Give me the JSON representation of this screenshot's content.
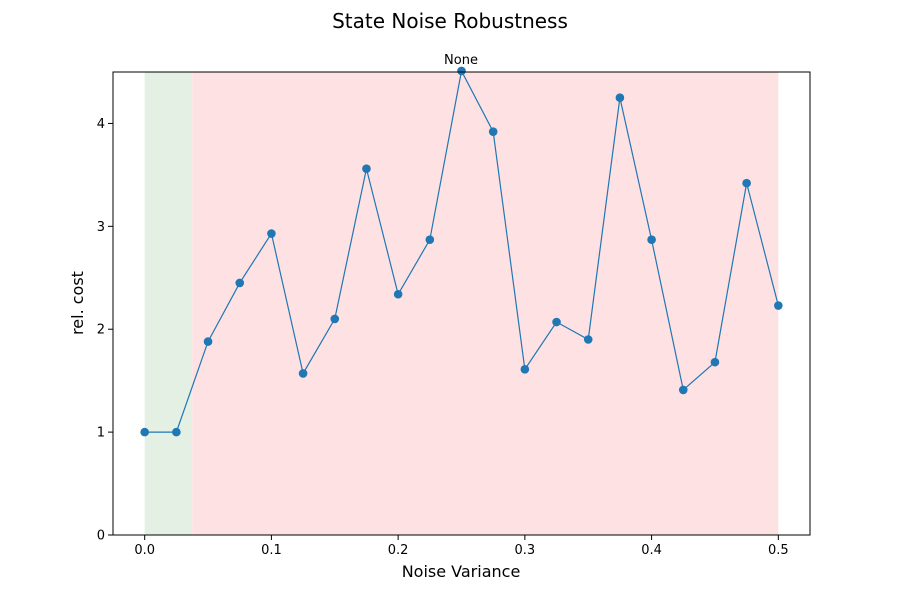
{
  "chart_data": {
    "type": "line",
    "title": "State Noise Robustness",
    "subtitle": "None",
    "xlabel": "Noise Variance",
    "ylabel": "rel. cost",
    "xlim": [
      -0.025,
      0.525
    ],
    "ylim": [
      0,
      4.5
    ],
    "xticks": [
      0.0,
      0.1,
      0.2,
      0.3,
      0.4,
      0.5
    ],
    "xtick_labels": [
      "0.0",
      "0.1",
      "0.2",
      "0.3",
      "0.4",
      "0.5"
    ],
    "yticks": [
      0,
      1,
      2,
      3,
      4
    ],
    "ytick_labels": [
      "0",
      "1",
      "2",
      "3",
      "4"
    ],
    "grid": false,
    "regions": [
      {
        "x_start": 0.0,
        "x_end": 0.0375,
        "color": "#e5f0e5"
      },
      {
        "x_start": 0.0375,
        "x_end": 0.5,
        "color": "#fee1e3"
      }
    ],
    "series": [
      {
        "color": "#1f77b4",
        "x": [
          0.0,
          0.025,
          0.05,
          0.075,
          0.1,
          0.125,
          0.15,
          0.175,
          0.2,
          0.225,
          0.25,
          0.275,
          0.3,
          0.325,
          0.35,
          0.375,
          0.4,
          0.425,
          0.45,
          0.475,
          0.5
        ],
        "y": [
          1.0,
          1.0,
          1.88,
          2.45,
          2.93,
          1.57,
          2.1,
          3.56,
          2.34,
          2.87,
          4.51,
          3.92,
          1.61,
          2.07,
          1.9,
          4.25,
          2.87,
          1.41,
          1.68,
          3.42,
          2.23
        ]
      }
    ]
  }
}
